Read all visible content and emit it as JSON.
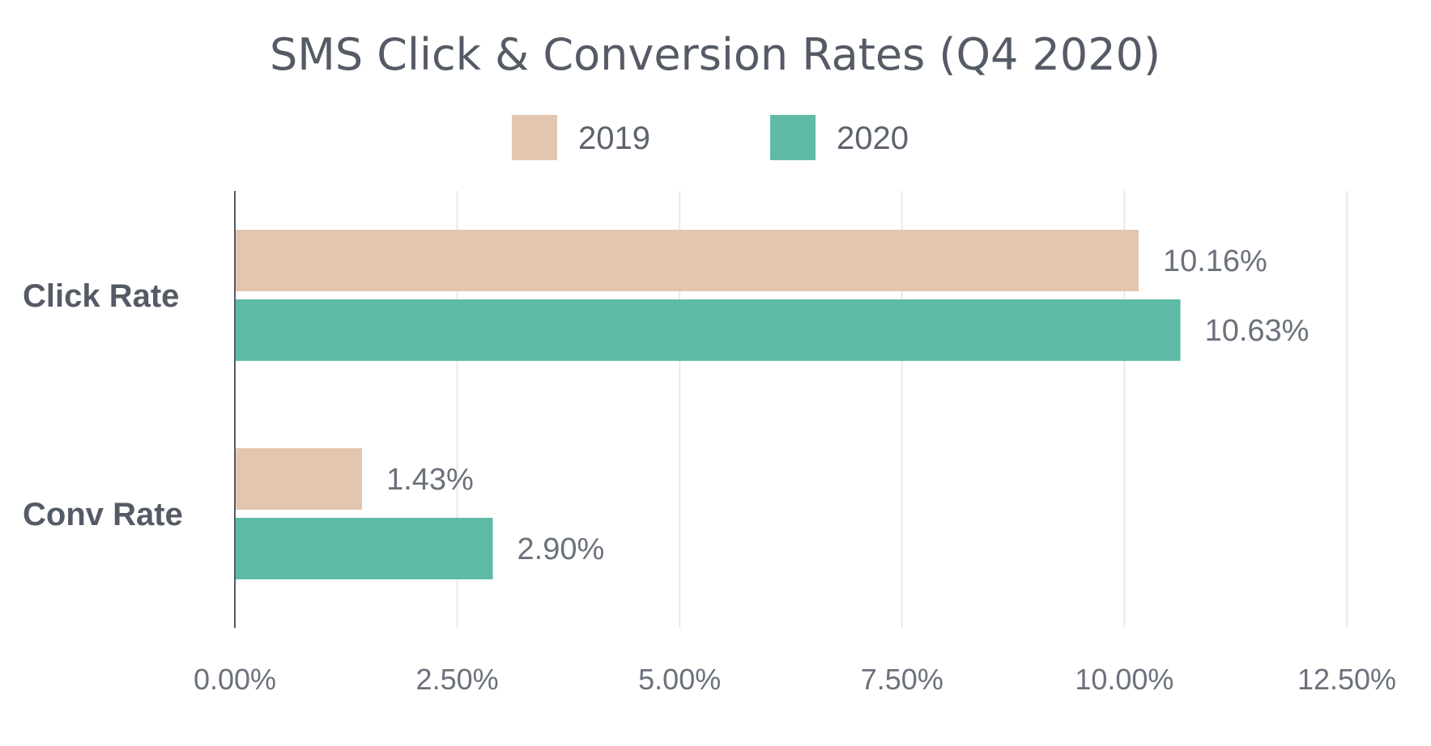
{
  "chart_data": {
    "type": "bar",
    "orientation": "horizontal",
    "title": "SMS Click & Conversion Rates (Q4 2020)",
    "categories": [
      "Click Rate",
      "Conv Rate"
    ],
    "series": [
      {
        "name": "2019",
        "color": "#e3c6b0",
        "values": [
          10.16,
          1.43
        ],
        "labels": [
          "10.16%",
          "1.43%"
        ]
      },
      {
        "name": "2020",
        "color": "#5fbba5",
        "values": [
          10.63,
          2.9
        ],
        "labels": [
          "10.63%",
          "2.90%"
        ]
      }
    ],
    "xlim": [
      0,
      12.5
    ],
    "xticks": [
      0,
      2.5,
      5,
      7.5,
      10,
      12.5
    ],
    "xtick_labels": [
      "0.00%",
      "2.50%",
      "5.00%",
      "7.50%",
      "10.00%",
      "12.50%"
    ],
    "xlabel": "",
    "ylabel": "",
    "grid": true,
    "legend_position": "top-center"
  }
}
